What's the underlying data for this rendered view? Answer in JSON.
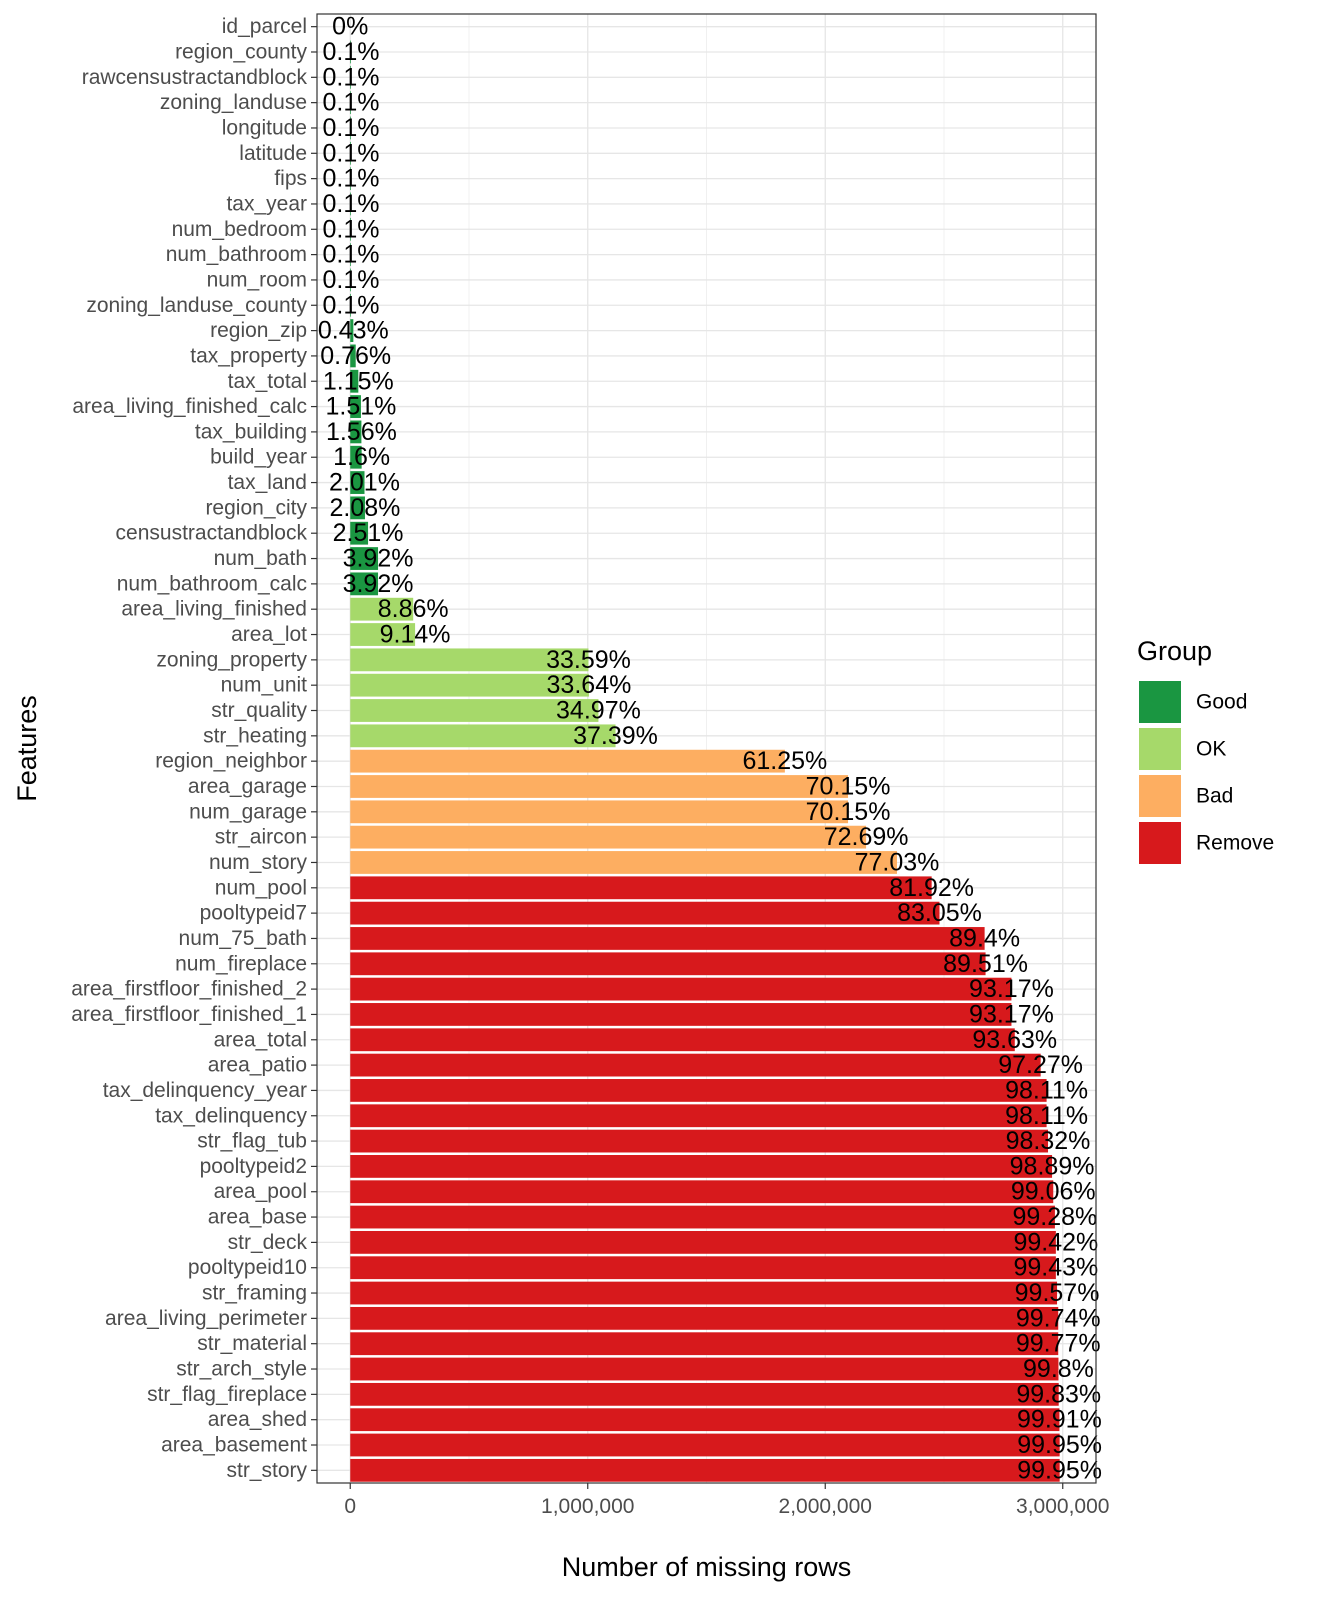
{
  "chart_data": {
    "type": "bar",
    "orientation": "horizontal",
    "xlabel": "Number of missing rows",
    "ylabel": "Features",
    "xlim": [
      -140000,
      3140000
    ],
    "x_ticks": [
      0,
      1000000,
      2000000,
      3000000
    ],
    "x_tick_labels": [
      "0",
      "1,000,000",
      "2,000,000",
      "3,000,000"
    ],
    "grid": true,
    "colors": {
      "Good": "#1a9641",
      "OK": "#a6d96a",
      "Bad": "#fdae61",
      "Remove": "#d7191c"
    },
    "legend": {
      "title": "Group",
      "placement": "right",
      "entries": [
        "Good",
        "OK",
        "Bad",
        "Remove"
      ]
    },
    "categories": [
      "id_parcel",
      "region_county",
      "rawcensustractandblock",
      "zoning_landuse",
      "longitude",
      "latitude",
      "fips",
      "tax_year",
      "num_bedroom",
      "num_bathroom",
      "num_room",
      "zoning_landuse_county",
      "region_zip",
      "tax_property",
      "tax_total",
      "area_living_finished_calc",
      "tax_building",
      "build_year",
      "tax_land",
      "region_city",
      "censustractandblock",
      "num_bath",
      "num_bathroom_calc",
      "area_living_finished",
      "area_lot",
      "zoning_property",
      "num_unit",
      "str_quality",
      "str_heating",
      "region_neighbor",
      "area_garage",
      "num_garage",
      "str_aircon",
      "num_story",
      "num_pool",
      "pooltypeid7",
      "num_75_bath",
      "num_fireplace",
      "area_firstfloor_finished_2",
      "area_firstfloor_finished_1",
      "area_total",
      "area_patio",
      "tax_delinquency_year",
      "tax_delinquency",
      "str_flag_tub",
      "pooltypeid2",
      "area_pool",
      "area_base",
      "str_deck",
      "pooltypeid10",
      "str_framing",
      "area_living_perimeter",
      "str_material",
      "str_arch_style",
      "str_flag_fireplace",
      "area_shed",
      "area_basement",
      "str_story"
    ],
    "values": [
      0,
      3000,
      3000,
      3000,
      3000,
      3000,
      3000,
      3000,
      3000,
      3000,
      3000,
      3000,
      13000,
      23000,
      34000,
      45000,
      47000,
      48000,
      60000,
      62000,
      75000,
      117000,
      117000,
      265000,
      273000,
      1003000,
      1005000,
      1045000,
      1117000,
      1830000,
      2096000,
      2096000,
      2172000,
      2302000,
      2448000,
      2481000,
      2671000,
      2675000,
      2784000,
      2784000,
      2798000,
      2907000,
      2932000,
      2932000,
      2938000,
      2955000,
      2960000,
      2967000,
      2971000,
      2971000,
      2976000,
      2981000,
      2981000,
      2982000,
      2983000,
      2986000,
      2987000,
      2987000
    ],
    "labels": [
      "0%",
      "0.1%",
      "0.1%",
      "0.1%",
      "0.1%",
      "0.1%",
      "0.1%",
      "0.1%",
      "0.1%",
      "0.1%",
      "0.1%",
      "0.1%",
      "0.43%",
      "0.76%",
      "1.15%",
      "1.51%",
      "1.56%",
      "1.6%",
      "2.01%",
      "2.08%",
      "2.51%",
      "3.92%",
      "3.92%",
      "8.86%",
      "9.14%",
      "33.59%",
      "33.64%",
      "34.97%",
      "37.39%",
      "61.25%",
      "70.15%",
      "70.15%",
      "72.69%",
      "77.03%",
      "81.92%",
      "83.05%",
      "89.4%",
      "89.51%",
      "93.17%",
      "93.17%",
      "93.63%",
      "97.27%",
      "98.11%",
      "98.11%",
      "98.32%",
      "98.89%",
      "99.06%",
      "99.28%",
      "99.42%",
      "99.43%",
      "99.57%",
      "99.74%",
      "99.77%",
      "99.8%",
      "99.83%",
      "99.91%",
      "99.95%",
      "99.95%"
    ],
    "groups": [
      "Good",
      "Good",
      "Good",
      "Good",
      "Good",
      "Good",
      "Good",
      "Good",
      "Good",
      "Good",
      "Good",
      "Good",
      "Good",
      "Good",
      "Good",
      "Good",
      "Good",
      "Good",
      "Good",
      "Good",
      "Good",
      "Good",
      "Good",
      "OK",
      "OK",
      "OK",
      "OK",
      "OK",
      "OK",
      "Bad",
      "Bad",
      "Bad",
      "Bad",
      "Bad",
      "Remove",
      "Remove",
      "Remove",
      "Remove",
      "Remove",
      "Remove",
      "Remove",
      "Remove",
      "Remove",
      "Remove",
      "Remove",
      "Remove",
      "Remove",
      "Remove",
      "Remove",
      "Remove",
      "Remove",
      "Remove",
      "Remove",
      "Remove",
      "Remove",
      "Remove",
      "Remove",
      "Remove"
    ]
  }
}
